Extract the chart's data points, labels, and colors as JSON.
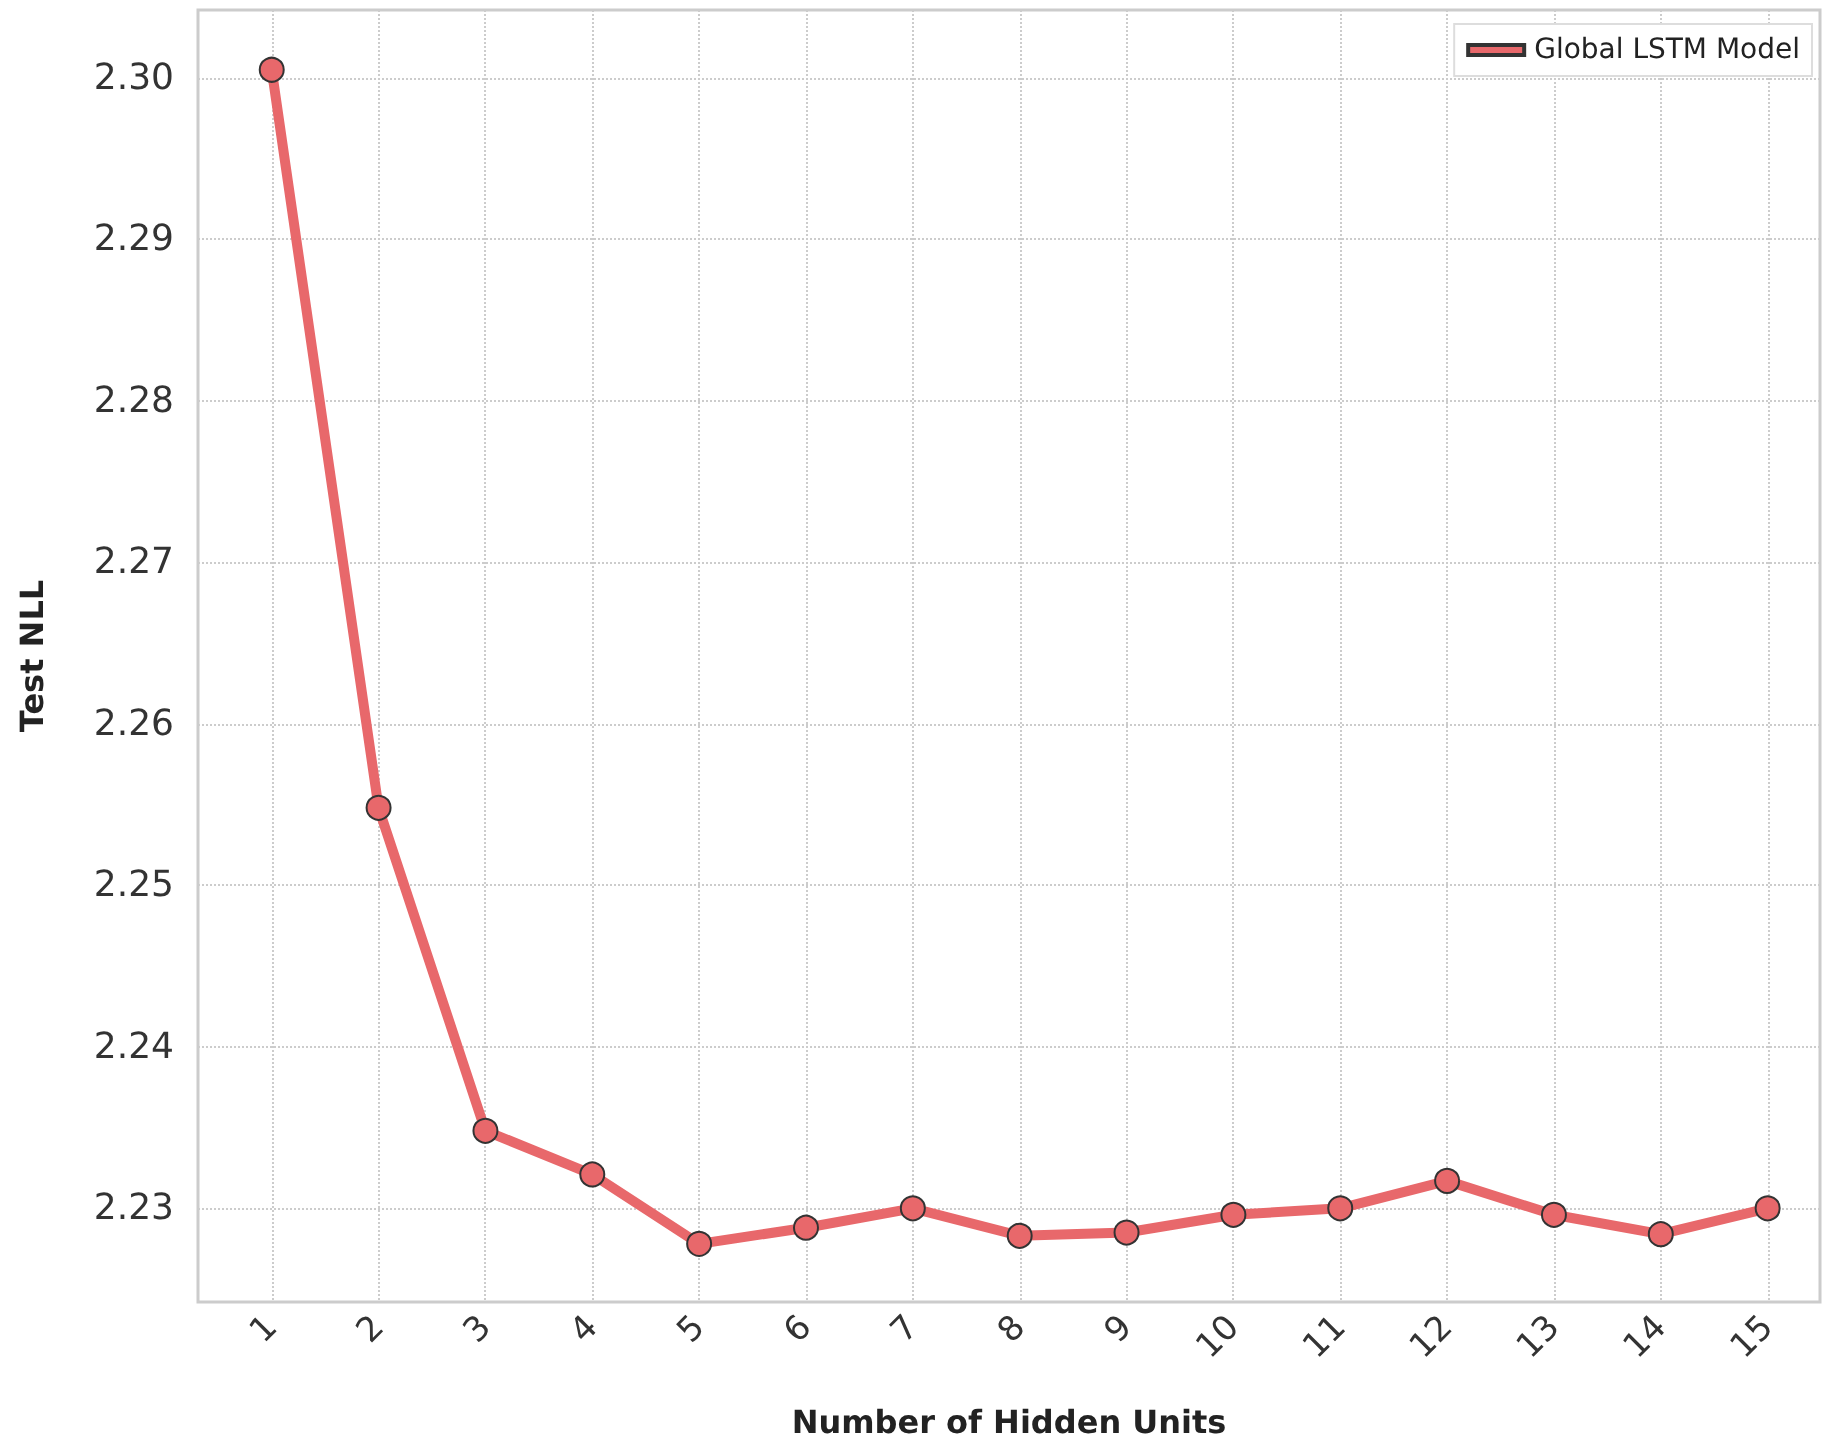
{
  "chart_data": {
    "type": "line",
    "xlabel": "Number of Hidden Units",
    "ylabel": "Test NLL",
    "x": [
      1,
      2,
      3,
      4,
      5,
      6,
      7,
      8,
      9,
      10,
      11,
      12,
      13,
      14,
      15
    ],
    "xlim": [
      0.31,
      15.49
    ],
    "xticks": [
      1,
      2,
      3,
      4,
      5,
      6,
      7,
      8,
      9,
      10,
      11,
      12,
      13,
      14,
      15
    ],
    "series": [
      {
        "name": "Global LSTM Model",
        "color": "#e8686b",
        "values": [
          2.3005,
          2.2548,
          2.2348,
          2.2321,
          2.2278,
          2.2288,
          2.23,
          2.2283,
          2.2285,
          2.2296,
          2.23,
          2.2317,
          2.2296,
          2.2284,
          2.23
        ]
      }
    ],
    "ylim": [
      2.2242,
      2.3042
    ],
    "yticks": [
      {
        "value": 2.23,
        "label": "2.23"
      },
      {
        "value": 2.24,
        "label": "2.24"
      },
      {
        "value": 2.25,
        "label": "2.25"
      },
      {
        "value": 2.26,
        "label": "2.26"
      },
      {
        "value": 2.27,
        "label": "2.27"
      },
      {
        "value": 2.28,
        "label": "2.28"
      },
      {
        "value": 2.29,
        "label": "2.29"
      },
      {
        "value": 2.3,
        "label": "2.30"
      }
    ],
    "grid": true,
    "legend": "top right",
    "marker": "circle",
    "line_style": "solid"
  }
}
